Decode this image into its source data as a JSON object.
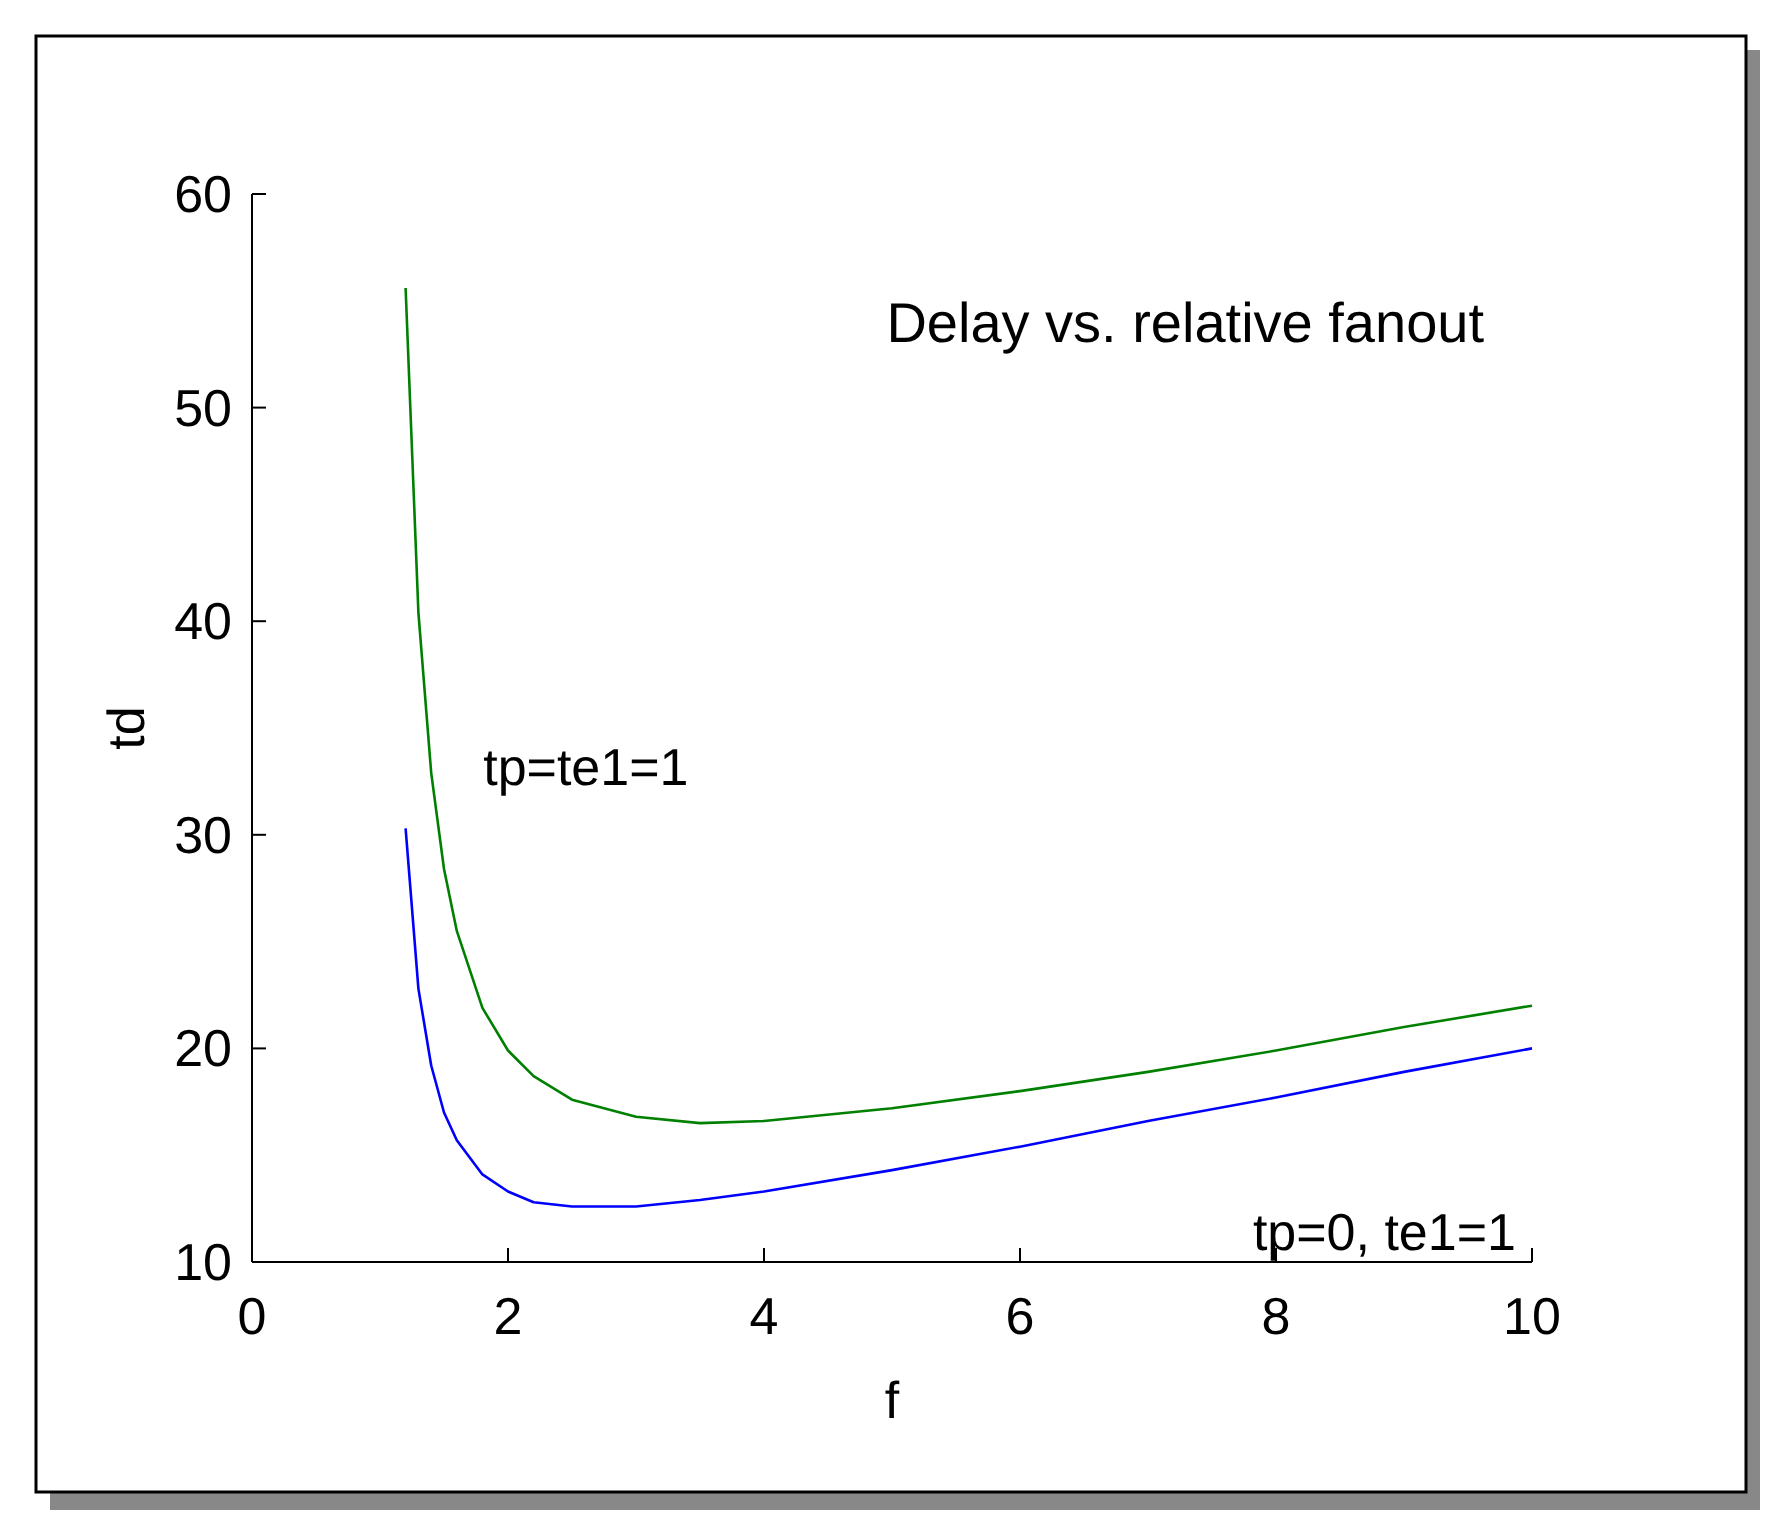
{
  "chart_data": {
    "type": "line",
    "title": "Delay vs. relative fanout",
    "xlabel": "f",
    "ylabel": "td",
    "x": [
      1.2,
      1.3,
      1.4,
      1.5,
      1.6,
      1.8,
      2,
      2.2,
      2.5,
      3,
      3.5,
      4,
      5,
      6,
      7,
      8,
      9,
      10
    ],
    "series": [
      {
        "name": "tp=te1=1",
        "color": "#008000",
        "values": [
          55.6,
          40.4,
          32.9,
          28.4,
          25.5,
          21.9,
          19.9,
          18.7,
          17.6,
          16.8,
          16.5,
          16.6,
          17.2,
          18.0,
          18.9,
          19.9,
          21.0,
          22.0
        ]
      },
      {
        "name": "tp=0, te1=1",
        "color": "#0000ff",
        "values": [
          30.3,
          22.8,
          19.2,
          17.0,
          15.7,
          14.1,
          13.3,
          12.8,
          12.6,
          12.6,
          12.9,
          13.3,
          14.3,
          15.4,
          16.6,
          17.7,
          18.9,
          20.0
        ]
      }
    ],
    "xlim": [
      0,
      10
    ],
    "ylim": [
      10,
      60
    ],
    "xticks": [
      0,
      2,
      4,
      6,
      8,
      10
    ],
    "yticks": [
      10,
      20,
      30,
      40,
      50,
      60
    ],
    "grid": false,
    "line_style": "solid"
  }
}
